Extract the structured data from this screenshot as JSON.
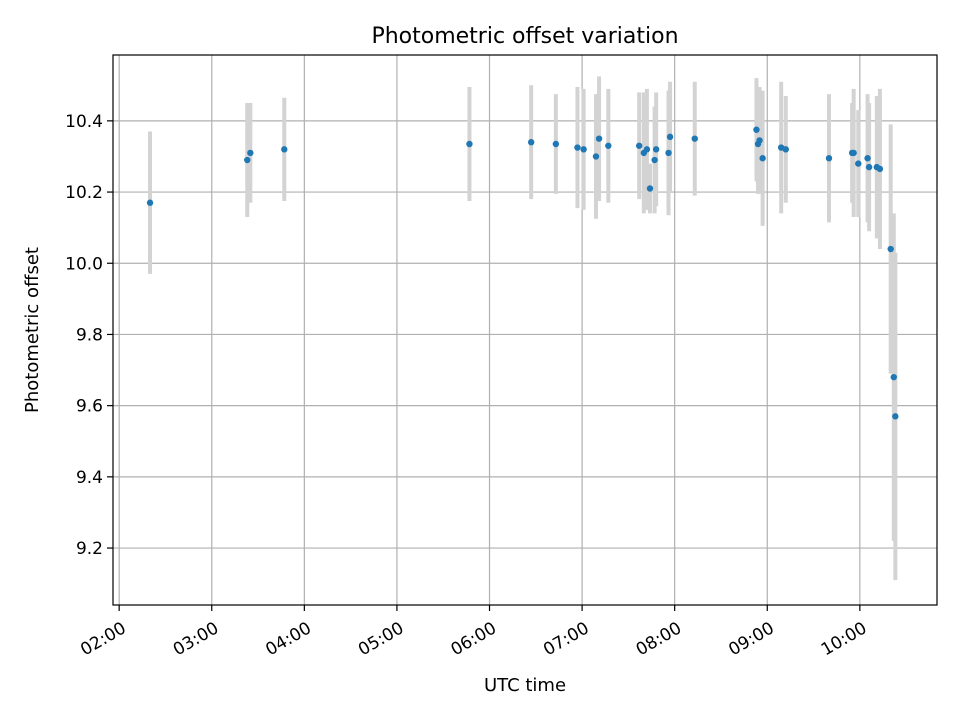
{
  "chart_data": {
    "type": "scatter",
    "title": "Photometric offset variation",
    "xlabel": "UTC time",
    "ylabel": "Photometric offset",
    "xlim": [
      "01:56",
      "10:50"
    ],
    "ylim": [
      9.04,
      10.585
    ],
    "grid": true,
    "x_ticks": [
      "02:00",
      "03:00",
      "04:00",
      "05:00",
      "06:00",
      "07:00",
      "08:00",
      "09:00",
      "10:00"
    ],
    "y_ticks": [
      "9.2",
      "9.4",
      "9.6",
      "9.8",
      "10.0",
      "10.2",
      "10.4"
    ],
    "y_tick_values": [
      9.2,
      9.4,
      9.6,
      9.8,
      10.0,
      10.2,
      10.4
    ],
    "point_color": "#1f77b4",
    "errorbar_color": "#d3d3d3",
    "points": [
      {
        "t": "02:20",
        "y": 10.17,
        "err": 0.2
      },
      {
        "t": "03:23",
        "y": 10.29,
        "err": 0.16
      },
      {
        "t": "03:25",
        "y": 10.31,
        "err": 0.14
      },
      {
        "t": "03:47",
        "y": 10.32,
        "err": 0.145
      },
      {
        "t": "05:47",
        "y": 10.335,
        "err": 0.16
      },
      {
        "t": "06:27",
        "y": 10.34,
        "err": 0.16
      },
      {
        "t": "06:43",
        "y": 10.335,
        "err": 0.14
      },
      {
        "t": "06:57",
        "y": 10.325,
        "err": 0.17
      },
      {
        "t": "07:01",
        "y": 10.32,
        "err": 0.17
      },
      {
        "t": "07:09",
        "y": 10.3,
        "err": 0.175
      },
      {
        "t": "07:11",
        "y": 10.35,
        "err": 0.175
      },
      {
        "t": "07:17",
        "y": 10.33,
        "err": 0.16
      },
      {
        "t": "07:37",
        "y": 10.33,
        "err": 0.15
      },
      {
        "t": "07:40",
        "y": 10.31,
        "err": 0.17
      },
      {
        "t": "07:42",
        "y": 10.32,
        "err": 0.17
      },
      {
        "t": "07:44",
        "y": 10.21,
        "err": 0.07
      },
      {
        "t": "07:47",
        "y": 10.29,
        "err": 0.15
      },
      {
        "t": "07:48",
        "y": 10.32,
        "err": 0.16
      },
      {
        "t": "07:56",
        "y": 10.31,
        "err": 0.175
      },
      {
        "t": "07:57",
        "y": 10.355,
        "err": 0.155
      },
      {
        "t": "08:13",
        "y": 10.35,
        "err": 0.16
      },
      {
        "t": "08:53",
        "y": 10.375,
        "err": 0.145
      },
      {
        "t": "08:54",
        "y": 10.335,
        "err": 0.14
      },
      {
        "t": "08:55",
        "y": 10.345,
        "err": 0.15
      },
      {
        "t": "08:57",
        "y": 10.295,
        "err": 0.19
      },
      {
        "t": "09:09",
        "y": 10.325,
        "err": 0.185
      },
      {
        "t": "09:12",
        "y": 10.32,
        "err": 0.15
      },
      {
        "t": "09:40",
        "y": 10.295,
        "err": 0.18
      },
      {
        "t": "09:55",
        "y": 10.31,
        "err": 0.14
      },
      {
        "t": "09:56",
        "y": 10.31,
        "err": 0.18
      },
      {
        "t": "09:59",
        "y": 10.28,
        "err": 0.15
      },
      {
        "t": "10:05",
        "y": 10.295,
        "err": 0.18
      },
      {
        "t": "10:06",
        "y": 10.27,
        "err": 0.18
      },
      {
        "t": "10:11",
        "y": 10.27,
        "err": 0.2
      },
      {
        "t": "10:13",
        "y": 10.265,
        "err": 0.225
      },
      {
        "t": "10:20",
        "y": 10.04,
        "err": 0.35
      },
      {
        "t": "10:22",
        "y": 9.68,
        "err": 0.46
      },
      {
        "t": "10:23",
        "y": 9.57,
        "err": 0.46
      }
    ]
  }
}
